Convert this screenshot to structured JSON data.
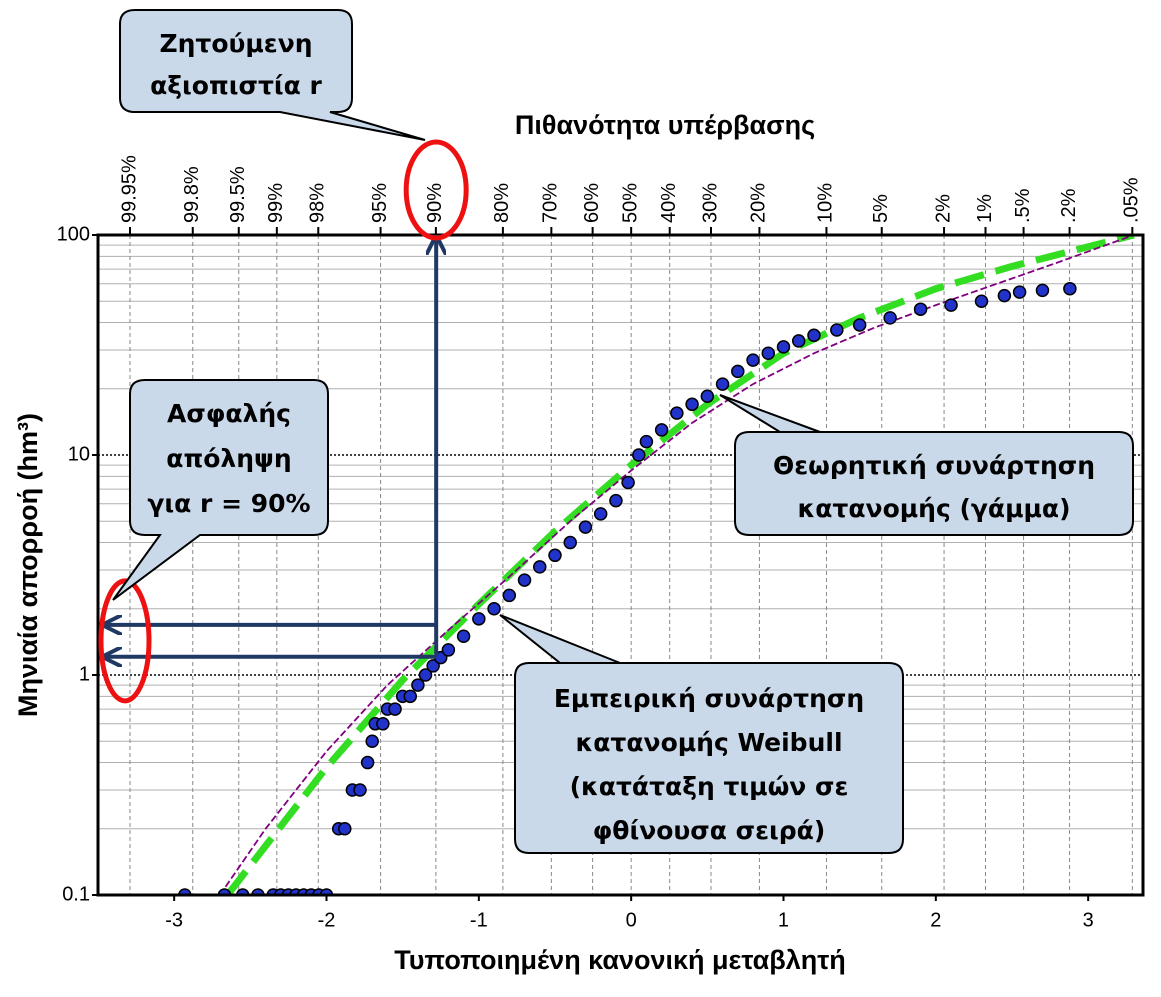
{
  "chart_data": {
    "type": "scatter",
    "xlabel": "Τυποποιημένη κανονική μεταβλητή",
    "x2label": "Πιθανότητα υπέρβασης",
    "ylabel": "Μηνιαία απορροή (hm³)",
    "xlim": [
      -3.5,
      3.36
    ],
    "ylim": [
      0.1,
      100
    ],
    "ylog": true,
    "grid": true,
    "xticks": [
      -3,
      -2,
      -1,
      0,
      1,
      2,
      3
    ],
    "yticks": [
      0.1,
      1,
      10,
      100
    ],
    "yminorticks": [
      0.2,
      0.3,
      0.4,
      0.5,
      0.6,
      0.7,
      0.8,
      0.9,
      2,
      3,
      4,
      5,
      6,
      7,
      8,
      9,
      20,
      30,
      40,
      50,
      60,
      70,
      80,
      90
    ],
    "x2ticks": [
      {
        "value": -3.29,
        "label": "99.95%"
      },
      {
        "value": -2.878,
        "label": "99.8%"
      },
      {
        "value": -2.576,
        "label": "99.5%"
      },
      {
        "value": -2.326,
        "label": "99%"
      },
      {
        "value": -2.054,
        "label": "98%"
      },
      {
        "value": -1.645,
        "label": "95%"
      },
      {
        "value": -1.282,
        "label": "90%"
      },
      {
        "value": -0.842,
        "label": "80%"
      },
      {
        "value": -0.524,
        "label": "70%"
      },
      {
        "value": -0.253,
        "label": "60%"
      },
      {
        "value": 0,
        "label": "50%"
      },
      {
        "value": 0.253,
        "label": "40%"
      },
      {
        "value": 0.524,
        "label": "30%"
      },
      {
        "value": 0.842,
        "label": "20%"
      },
      {
        "value": 1.282,
        "label": "10%"
      },
      {
        "value": 1.645,
        "label": "5%"
      },
      {
        "value": 2.054,
        "label": "2%"
      },
      {
        "value": 2.326,
        "label": "1%"
      },
      {
        "value": 2.576,
        "label": ".5%"
      },
      {
        "value": 2.878,
        "label": ".2%"
      },
      {
        "value": 3.29,
        "label": ".05%"
      }
    ],
    "series": [
      {
        "kind": "points",
        "color": "#2233cc",
        "x": [
          -2.93,
          -2.67,
          -2.55,
          -2.45,
          -2.35,
          -2.3,
          -2.25,
          -2.2,
          -2.15,
          -2.1,
          -2.05,
          -2.0,
          -1.92,
          -1.88,
          -1.83,
          -1.78,
          -1.73,
          -1.7,
          -1.68,
          -1.63,
          -1.6,
          -1.55,
          -1.5,
          -1.45,
          -1.4,
          -1.35,
          -1.3,
          -1.25,
          -1.2,
          -1.1,
          -1.0,
          -0.9,
          -0.8,
          -0.7,
          -0.6,
          -0.5,
          -0.4,
          -0.3,
          -0.2,
          -0.1,
          -0.02,
          0.05,
          0.1,
          0.2,
          0.3,
          0.4,
          0.5,
          0.6,
          0.7,
          0.8,
          0.9,
          1.0,
          1.1,
          1.2,
          1.35,
          1.5,
          1.7,
          1.9,
          2.1,
          2.3,
          2.45,
          2.55,
          2.7,
          2.88
        ],
        "y": [
          0.1,
          0.1,
          0.1,
          0.1,
          0.1,
          0.1,
          0.1,
          0.1,
          0.1,
          0.1,
          0.1,
          0.1,
          0.2,
          0.2,
          0.3,
          0.3,
          0.4,
          0.5,
          0.6,
          0.6,
          0.7,
          0.7,
          0.8,
          0.8,
          0.9,
          1.0,
          1.1,
          1.2,
          1.3,
          1.5,
          1.8,
          2.0,
          2.3,
          2.7,
          3.1,
          3.5,
          4.0,
          4.7,
          5.4,
          6.2,
          7.5,
          10,
          11.5,
          13,
          15.5,
          17,
          18.5,
          21,
          24,
          27,
          29,
          31,
          33,
          35,
          37,
          39,
          42,
          46,
          48,
          50,
          53,
          55,
          56,
          57
        ]
      },
      {
        "kind": "thin-dashed-line",
        "color": "#800080",
        "x": [
          -2.7,
          -2.4,
          -2.0,
          -1.6,
          -1.2,
          -0.8,
          -0.4,
          0,
          0.4,
          0.8,
          1.2,
          1.6,
          2.0,
          2.4,
          2.8,
          3.3
        ],
        "y": [
          0.1,
          0.2,
          0.45,
          0.9,
          1.6,
          2.8,
          5,
          8.5,
          14,
          21,
          29,
          38,
          48,
          60,
          75,
          100
        ]
      },
      {
        "kind": "thick-dashed-line",
        "color": "#33dd22",
        "x": [
          -2.65,
          -2.0,
          -1.5,
          -1.0,
          -0.5,
          0,
          0.5,
          1.0,
          1.5,
          2.0,
          2.5,
          3.3
        ],
        "y": [
          0.1,
          0.38,
          0.95,
          2.1,
          4.5,
          9,
          17,
          29,
          42,
          57,
          72,
          100
        ]
      }
    ],
    "reliability": {
      "x": -1.28,
      "yields": [
        1.69,
        1.21
      ]
    },
    "annotations": [
      {
        "lines": [
          "Ζητούμενη",
          "αξιοπιστία r"
        ]
      },
      {
        "lines": [
          "Ασφαλής",
          "απόληψη",
          "για r = 90%"
        ]
      },
      {
        "lines": [
          "Θεωρητική συνάρτηση",
          "κατανομής (γάμμα)"
        ]
      },
      {
        "lines": [
          "Εμπειρική συνάρτηση",
          "κατανομής Weibull",
          "(κατάταξη τιμών σε",
          "φθίνουσα σειρά)"
        ]
      }
    ]
  }
}
